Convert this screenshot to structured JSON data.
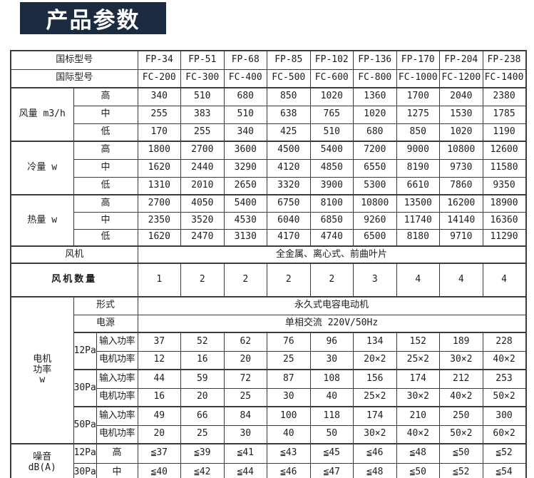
{
  "banner": {
    "title": "产品参数",
    "bg_color": "#1b2c41",
    "text_color": "#ffffff"
  },
  "table": {
    "border_color": "#3b3b3b",
    "rows": [
      [
        {
          "t": "国标型号",
          "cs": 3,
          "c": "lbl",
          "n": "row-label-gb-model"
        },
        {
          "t": "FP-34"
        },
        {
          "t": "FP-51"
        },
        {
          "t": "FP-68"
        },
        {
          "t": "FP-85"
        },
        {
          "t": "FP-102"
        },
        {
          "t": "FP-136"
        },
        {
          "t": "FP-170"
        },
        {
          "t": "FP-204"
        },
        {
          "t": "FP-238"
        }
      ],
      [
        {
          "t": "国际型号",
          "cs": 3,
          "c": "lbl",
          "n": "row-label-intl-model"
        },
        {
          "t": "FC-200"
        },
        {
          "t": "FC-300"
        },
        {
          "t": "FC-400"
        },
        {
          "t": "FC-500"
        },
        {
          "t": "FC-600"
        },
        {
          "t": "FC-800"
        },
        {
          "t": "FC-1000"
        },
        {
          "t": "FC-1200"
        },
        {
          "t": "FC-1400"
        }
      ],
      [
        {
          "t": "风量 m3/h",
          "rs": 3,
          "c": "lbl",
          "n": "row-label-air-volume"
        },
        {
          "t": "高",
          "cs": 2,
          "c": "lbl",
          "n": "level-high"
        },
        {
          "t": "340"
        },
        {
          "t": "510"
        },
        {
          "t": "680"
        },
        {
          "t": "850"
        },
        {
          "t": "1020"
        },
        {
          "t": "1360"
        },
        {
          "t": "1700"
        },
        {
          "t": "2040"
        },
        {
          "t": "2380"
        }
      ],
      [
        {
          "t": "中",
          "cs": 2,
          "c": "lbl",
          "n": "level-mid"
        },
        {
          "t": "255"
        },
        {
          "t": "383"
        },
        {
          "t": "510"
        },
        {
          "t": "638"
        },
        {
          "t": "765"
        },
        {
          "t": "1020"
        },
        {
          "t": "1275"
        },
        {
          "t": "1530"
        },
        {
          "t": "1785"
        }
      ],
      [
        {
          "t": "低",
          "cs": 2,
          "c": "lbl",
          "n": "level-low"
        },
        {
          "t": "170"
        },
        {
          "t": "255"
        },
        {
          "t": "340"
        },
        {
          "t": "425"
        },
        {
          "t": "510"
        },
        {
          "t": "680"
        },
        {
          "t": "850"
        },
        {
          "t": "1020"
        },
        {
          "t": "1190"
        }
      ],
      [
        {
          "t": "冷量 w",
          "rs": 3,
          "c": "lbl",
          "n": "row-label-cooling"
        },
        {
          "t": "高",
          "cs": 2,
          "c": "lbl",
          "n": "level-high"
        },
        {
          "t": "1800"
        },
        {
          "t": "2700"
        },
        {
          "t": "3600"
        },
        {
          "t": "4500"
        },
        {
          "t": "5400"
        },
        {
          "t": "7200"
        },
        {
          "t": "9000"
        },
        {
          "t": "10800"
        },
        {
          "t": "12600"
        }
      ],
      [
        {
          "t": "中",
          "cs": 2,
          "c": "lbl",
          "n": "level-mid"
        },
        {
          "t": "1620"
        },
        {
          "t": "2440"
        },
        {
          "t": "3290"
        },
        {
          "t": "4120"
        },
        {
          "t": "4850"
        },
        {
          "t": "6550"
        },
        {
          "t": "8190"
        },
        {
          "t": "9730"
        },
        {
          "t": "11580"
        }
      ],
      [
        {
          "t": "低",
          "cs": 2,
          "c": "lbl",
          "n": "level-low"
        },
        {
          "t": "1310"
        },
        {
          "t": "2010"
        },
        {
          "t": "2650"
        },
        {
          "t": "3320"
        },
        {
          "t": "3900"
        },
        {
          "t": "5300"
        },
        {
          "t": "6610"
        },
        {
          "t": "7860"
        },
        {
          "t": "9350"
        }
      ],
      [
        {
          "t": "热量 w",
          "rs": 3,
          "c": "lbl",
          "n": "row-label-heating"
        },
        {
          "t": "高",
          "cs": 2,
          "c": "lbl",
          "n": "level-high"
        },
        {
          "t": "2700"
        },
        {
          "t": "4050"
        },
        {
          "t": "5400"
        },
        {
          "t": "6750"
        },
        {
          "t": "8100"
        },
        {
          "t": "10800"
        },
        {
          "t": "13500"
        },
        {
          "t": "16200"
        },
        {
          "t": "18900"
        }
      ],
      [
        {
          "t": "中",
          "cs": 2,
          "c": "lbl",
          "n": "level-mid"
        },
        {
          "t": "2350"
        },
        {
          "t": "3520"
        },
        {
          "t": "4530"
        },
        {
          "t": "6040"
        },
        {
          "t": "6850"
        },
        {
          "t": "9260"
        },
        {
          "t": "11740"
        },
        {
          "t": "14140"
        },
        {
          "t": "16360"
        }
      ],
      [
        {
          "t": "低",
          "cs": 2,
          "c": "lbl",
          "n": "level-low"
        },
        {
          "t": "1620"
        },
        {
          "t": "2470"
        },
        {
          "t": "3130"
        },
        {
          "t": "4170"
        },
        {
          "t": "4740"
        },
        {
          "t": "6500"
        },
        {
          "t": "8180"
        },
        {
          "t": "9710"
        },
        {
          "t": "11290"
        }
      ],
      [
        {
          "t": "风机",
          "cs": 3,
          "c": "lbl",
          "n": "row-label-fan"
        },
        {
          "t": "全金属、离心式、前曲叶片",
          "cs": 9,
          "c": "lbl",
          "n": "fan-type-value"
        }
      ],
      [
        {
          "t": "风机数量",
          "cs": 3,
          "c": "lbl big",
          "n": "row-label-fan-qty"
        },
        {
          "t": "1"
        },
        {
          "t": "2"
        },
        {
          "t": "2"
        },
        {
          "t": "2"
        },
        {
          "t": "2"
        },
        {
          "t": "3"
        },
        {
          "t": "4"
        },
        {
          "t": "4"
        },
        {
          "t": "4"
        }
      ],
      [
        {
          "t": "电机\n功率\nw",
          "rs": 8,
          "c": "lbl",
          "n": "row-label-motor-power"
        },
        {
          "t": "形式",
          "cs": 2,
          "c": "lbl",
          "n": "row-label-motor-type"
        },
        {
          "t": "永久式电容电动机",
          "cs": 9,
          "c": "lbl",
          "n": "motor-type-value"
        }
      ],
      [
        {
          "t": "电源",
          "cs": 2,
          "c": "lbl",
          "n": "row-label-power-supply"
        },
        {
          "t": "单相交流 220V/50Hz",
          "cs": 9,
          "c": "lbl",
          "n": "power-supply-value"
        }
      ],
      [
        {
          "t": "12Pa",
          "rs": 2,
          "c": "sm",
          "n": "pressure-12pa"
        },
        {
          "t": "输入功率",
          "c": "lbl sm2",
          "n": "row-label-input-power"
        },
        {
          "t": "37"
        },
        {
          "t": "52"
        },
        {
          "t": "62"
        },
        {
          "t": "76"
        },
        {
          "t": "96"
        },
        {
          "t": "134"
        },
        {
          "t": "152"
        },
        {
          "t": "189"
        },
        {
          "t": "228"
        }
      ],
      [
        {
          "t": "电机功率",
          "c": "lbl sm2",
          "n": "row-label-motor-power-w"
        },
        {
          "t": "12"
        },
        {
          "t": "16"
        },
        {
          "t": "20"
        },
        {
          "t": "25"
        },
        {
          "t": "30"
        },
        {
          "t": "20×2"
        },
        {
          "t": "25×2"
        },
        {
          "t": "30×2"
        },
        {
          "t": "40×2"
        }
      ],
      [
        {
          "t": "30Pa",
          "rs": 2,
          "c": "sm",
          "n": "pressure-30pa"
        },
        {
          "t": "输入功率",
          "c": "lbl sm2",
          "n": "row-label-input-power"
        },
        {
          "t": "44"
        },
        {
          "t": "59"
        },
        {
          "t": "72"
        },
        {
          "t": "87"
        },
        {
          "t": "108"
        },
        {
          "t": "156"
        },
        {
          "t": "174"
        },
        {
          "t": "212"
        },
        {
          "t": "253"
        }
      ],
      [
        {
          "t": "电机功率",
          "c": "lbl sm2",
          "n": "row-label-motor-power-w"
        },
        {
          "t": "16"
        },
        {
          "t": "20"
        },
        {
          "t": "25"
        },
        {
          "t": "30"
        },
        {
          "t": "40"
        },
        {
          "t": "25×2"
        },
        {
          "t": "30×2"
        },
        {
          "t": "40×2"
        },
        {
          "t": "50×2"
        }
      ],
      [
        {
          "t": "50Pa",
          "rs": 2,
          "c": "sm",
          "n": "pressure-50pa"
        },
        {
          "t": "输入功率",
          "c": "lbl sm2",
          "n": "row-label-input-power"
        },
        {
          "t": "49"
        },
        {
          "t": "66"
        },
        {
          "t": "84"
        },
        {
          "t": "100"
        },
        {
          "t": "118"
        },
        {
          "t": "174"
        },
        {
          "t": "210"
        },
        {
          "t": "250"
        },
        {
          "t": "300"
        }
      ],
      [
        {
          "t": "电机功率",
          "c": "lbl sm2",
          "n": "row-label-motor-power-w"
        },
        {
          "t": "20"
        },
        {
          "t": "25"
        },
        {
          "t": "30"
        },
        {
          "t": "40"
        },
        {
          "t": "50"
        },
        {
          "t": "30×2"
        },
        {
          "t": "40×2"
        },
        {
          "t": "50×2"
        },
        {
          "t": "60×2"
        }
      ],
      [
        {
          "t": "噪音\ndB(A)",
          "rs": 2,
          "c": "lbl",
          "n": "row-label-noise"
        },
        {
          "t": "12Pa",
          "c": "sm",
          "n": "pressure-12pa"
        },
        {
          "t": "高",
          "c": "lbl",
          "n": "level-high"
        },
        {
          "t": "≦37"
        },
        {
          "t": "≦39"
        },
        {
          "t": "≦41"
        },
        {
          "t": "≦43"
        },
        {
          "t": "≦45"
        },
        {
          "t": "≦46"
        },
        {
          "t": "≦48"
        },
        {
          "t": "≦50"
        },
        {
          "t": "≦52"
        }
      ],
      [
        {
          "t": "30Pa",
          "c": "sm",
          "n": "pressure-30pa"
        },
        {
          "t": "中",
          "c": "lbl",
          "n": "level-mid"
        },
        {
          "t": "≦40"
        },
        {
          "t": "≦42"
        },
        {
          "t": "≦44"
        },
        {
          "t": "≦46"
        },
        {
          "t": "≦47"
        },
        {
          "t": "≦48"
        },
        {
          "t": "≦50"
        },
        {
          "t": "≦52"
        },
        {
          "t": "≦54"
        }
      ]
    ]
  }
}
